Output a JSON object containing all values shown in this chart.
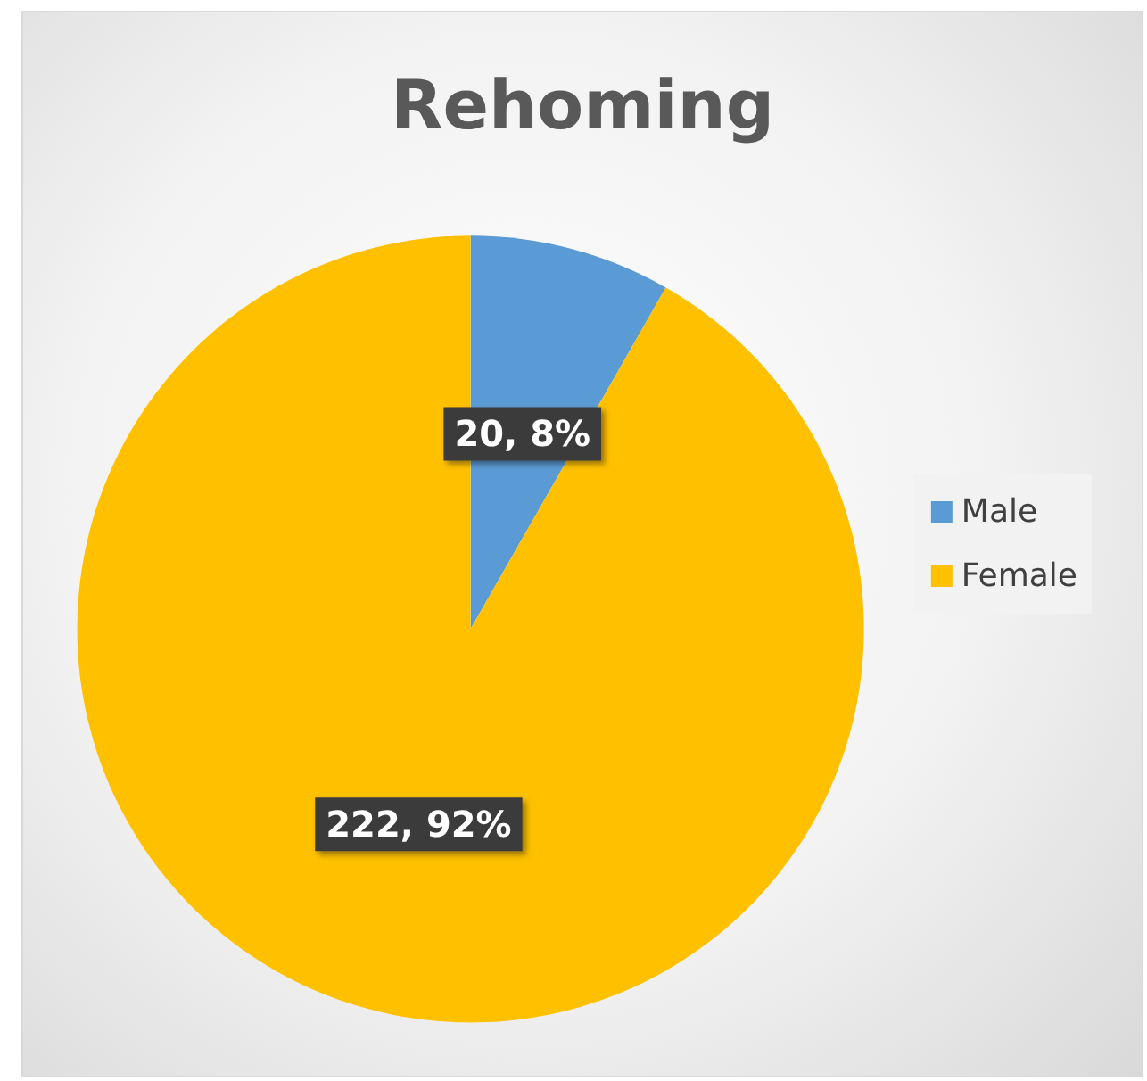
{
  "chart_data": {
    "type": "pie",
    "title": "Rehoming",
    "categories": [
      "Male",
      "Female"
    ],
    "values": [
      20,
      222
    ],
    "colors": [
      "#5b9bd5",
      "#ffc000"
    ],
    "value_labels": [
      "20, 8%",
      "222, 92%"
    ],
    "legend": "right"
  }
}
